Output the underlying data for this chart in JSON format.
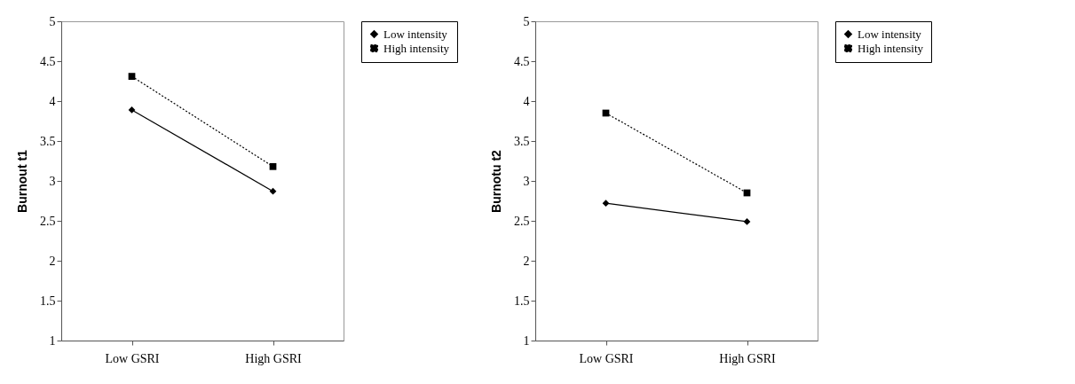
{
  "chart_data": [
    {
      "type": "line",
      "ylabel": "Burnout t1",
      "categories": [
        "Low GSRI",
        "High GSRI"
      ],
      "ylim": [
        1,
        5
      ],
      "yticks": [
        1,
        1.5,
        2,
        2.5,
        3,
        3.5,
        4,
        4.5,
        5
      ],
      "grid": false,
      "legend": "right",
      "series": [
        {
          "name": "Low intensity",
          "color": "#000000",
          "marker": "diamond",
          "line_style": "solid",
          "values": [
            3.89,
            2.87
          ]
        },
        {
          "name": "High intensity",
          "color": "#000000",
          "marker": "square",
          "line_style": "dotted",
          "values": [
            4.31,
            3.18
          ]
        }
      ]
    },
    {
      "type": "line",
      "ylabel": "Burnotu t2",
      "categories": [
        "Low GSRI",
        "High GSRI"
      ],
      "ylim": [
        1,
        5
      ],
      "yticks": [
        1,
        1.5,
        2,
        2.5,
        3,
        3.5,
        4,
        4.5,
        5
      ],
      "grid": false,
      "legend": "right",
      "series": [
        {
          "name": "Low intensity",
          "color": "#000000",
          "marker": "diamond",
          "line_style": "solid",
          "values": [
            2.72,
            2.49
          ]
        },
        {
          "name": "High intensity",
          "color": "#000000",
          "marker": "square",
          "line_style": "dotted",
          "values": [
            3.85,
            2.85
          ]
        }
      ]
    }
  ]
}
